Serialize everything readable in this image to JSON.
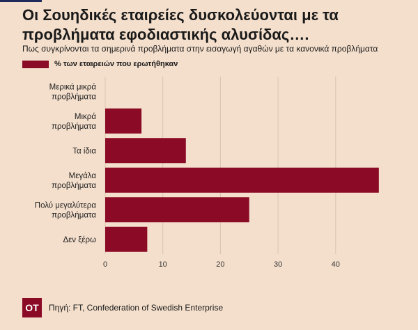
{
  "title": "Οι Σουηδικές εταιρείες δυσκολεύονται με τα προβλήματα εφοδιαστικής αλυσίδας….",
  "subtitle": "Πως συγκρίνονται τα σημερινά προβλήματα στην εισαγωγή αγαθών με τα κανονικά προβλήματα",
  "logo": "OT",
  "source": "Πηγή: FT, Confederation of Swedish Enterprise",
  "colors": {
    "bar": "#8b0a26",
    "background": "#f4dfcc",
    "grid": "#d9c4b1"
  },
  "chart_data": {
    "type": "bar",
    "orientation": "horizontal",
    "categories": [
      [
        "Μερικά μικρά",
        "προβλήματα"
      ],
      [
        "Μικρά",
        "προβλήματα"
      ],
      [
        "Τα ίδια"
      ],
      [
        "Μεγάλα",
        "προβλήματα"
      ],
      [
        "Πολύ μεγαλύτερα",
        "προβλήματα"
      ],
      [
        "Δεν ξέρω"
      ]
    ],
    "series": [
      {
        "name": "% των εταιρειών που ερωτήθηκαν",
        "values": [
          0,
          6.3,
          14,
          47.5,
          25,
          7.3
        ]
      }
    ],
    "xlim": [
      0,
      50
    ],
    "xticks": [
      0,
      10,
      20,
      30,
      40
    ],
    "grid": true,
    "legend": "top-left"
  }
}
